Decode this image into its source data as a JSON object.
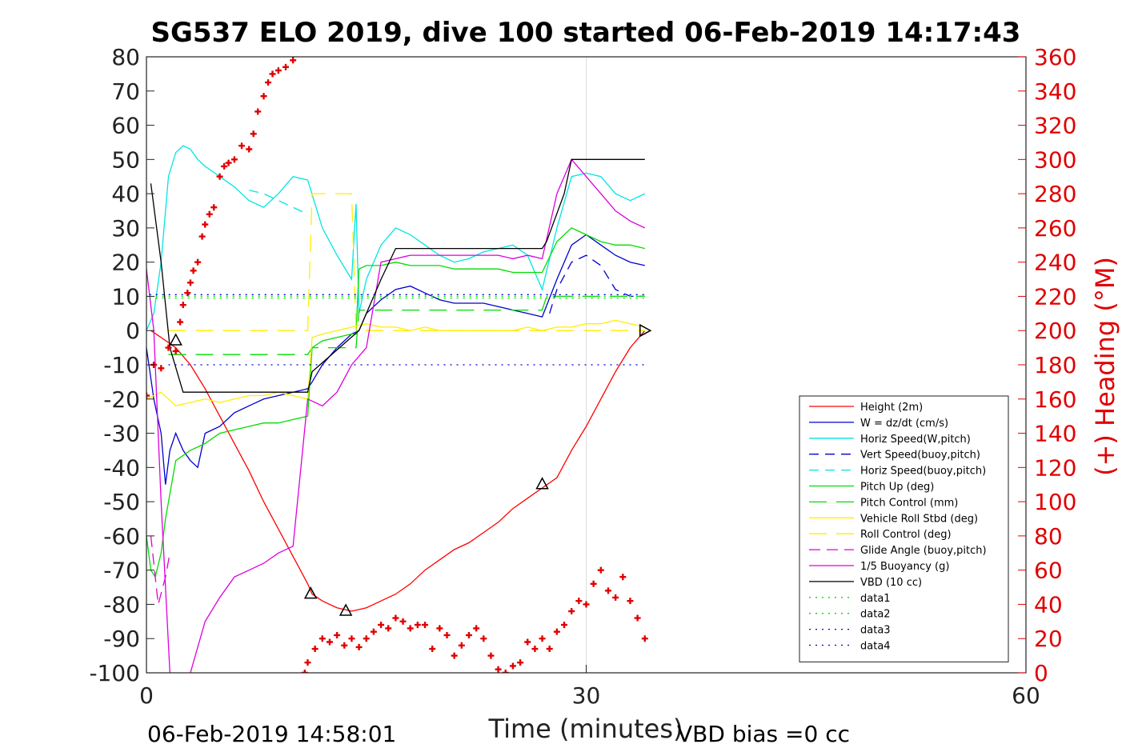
{
  "chart_data": {
    "type": "line",
    "title": "SG537 ELO 2019, dive 100 started 06-Feb-2019 14:17:43",
    "xlabel": "Time (minutes)",
    "ylabel": "",
    "ylabel_right": "(+) Heading (°M)",
    "xlim": [
      0,
      60
    ],
    "ylim": [
      -100,
      80
    ],
    "ylim_right": [
      0,
      360
    ],
    "x_ticks": [
      "0",
      "30",
      "60"
    ],
    "y_ticks": [
      "80",
      "70",
      "60",
      "50",
      "40",
      "30",
      "20",
      "10",
      "0",
      "-10",
      "-20",
      "-30",
      "-40",
      "-50",
      "-60",
      "-70",
      "-80",
      "-90",
      "-100"
    ],
    "y_ticks_right": [
      "360",
      "340",
      "320",
      "300",
      "280",
      "260",
      "240",
      "220",
      "200",
      "180",
      "160",
      "140",
      "120",
      "100",
      "80",
      "60",
      "40",
      "20",
      "0"
    ],
    "grid": "x only",
    "legend_position": "lower-right",
    "footer_left": "06-Feb-2019 14:58:01",
    "footer_right": "VBD bias =0 cc",
    "colors": {
      "red": "#ff0000",
      "blue": "#0000cc",
      "cyan": "#00e5e5",
      "green": "#00dd00",
      "yellow": "#ffee00",
      "magenta": "#dd00dd",
      "black": "#000000",
      "heading": "#e00000"
    },
    "series": [
      {
        "name": "Height (2m)",
        "color": "#ff0000",
        "dash": "",
        "x": [
          0.3,
          1,
          2,
          3,
          4,
          5,
          6,
          7,
          8,
          9,
          10,
          11,
          11.3,
          12,
          13,
          14,
          15,
          16,
          17,
          18,
          19,
          20,
          21,
          22,
          23,
          24,
          25,
          26,
          27,
          28,
          29,
          30,
          31,
          32,
          33,
          34
        ],
        "y": [
          0,
          -2,
          -5,
          -10,
          -17,
          -25,
          -33,
          -41,
          -50,
          -58,
          -66,
          -74,
          -77,
          -79,
          -81,
          -82,
          -81,
          -79,
          -77,
          -74,
          -70,
          -67,
          -64,
          -62,
          -59,
          -56,
          -52,
          -49,
          -46,
          -43,
          -35,
          -28,
          -20,
          -12,
          -5,
          0
        ]
      },
      {
        "name": "W = dz/dt (cm/s)",
        "color": "#0000cc",
        "dash": "",
        "x": [
          0,
          0.5,
          1,
          1.3,
          1.6,
          2,
          2.5,
          3,
          3.5,
          4,
          5,
          6,
          7,
          8,
          9,
          10,
          11,
          11.3,
          12,
          13,
          14,
          14.5,
          15,
          16,
          17,
          18,
          19,
          20,
          21,
          22,
          23,
          24,
          25,
          26,
          27,
          28,
          29,
          30,
          31,
          32,
          33,
          34
        ],
        "y": [
          -5,
          -20,
          -30,
          -45,
          -35,
          -30,
          -35,
          -38,
          -40,
          -30,
          -28,
          -24,
          -22,
          -20,
          -19,
          -18,
          -17,
          -15,
          -10,
          -5,
          -1,
          0,
          5,
          9,
          12,
          13,
          11,
          9,
          8,
          8,
          8,
          7,
          6,
          5,
          4,
          15,
          25,
          28,
          25,
          22,
          20,
          19
        ]
      },
      {
        "name": "Horiz Speed(W,pitch)",
        "color": "#00e5e5",
        "dash": "",
        "x": [
          0,
          0.5,
          1,
          1.5,
          2,
          2.5,
          3,
          3.5,
          4,
          5,
          6,
          7,
          8,
          9,
          10,
          11,
          12,
          13,
          14,
          14.3,
          14.5,
          15,
          16,
          17,
          18,
          19,
          20,
          21,
          22,
          23,
          24,
          25,
          26,
          27,
          28,
          29,
          30,
          31,
          32,
          33,
          34
        ],
        "y": [
          0,
          5,
          20,
          45,
          52,
          54,
          53,
          50,
          48,
          45,
          42,
          38,
          36,
          40,
          45,
          44,
          30,
          22,
          15,
          37,
          5,
          15,
          25,
          30,
          28,
          25,
          22,
          20,
          21,
          23,
          24,
          25,
          22,
          12,
          30,
          45,
          46,
          45,
          40,
          38,
          40
        ]
      },
      {
        "name": "Vert Speed(buoy,pitch)",
        "color": "#0000cc",
        "dash": "12,8",
        "x": [
          27.5,
          28,
          29,
          30,
          31,
          32,
          33,
          34
        ],
        "y": [
          5,
          12,
          20,
          22,
          19,
          12,
          10,
          10
        ]
      },
      {
        "name": "Horiz Speed(buoy,pitch)",
        "color": "#00e5e5",
        "dash": "12,8",
        "x": [
          7,
          8,
          9,
          10,
          11
        ],
        "y": [
          41,
          40,
          38,
          36,
          34
        ]
      },
      {
        "name": "Pitch Up (deg)",
        "color": "#00dd00",
        "dash": "",
        "x": [
          0,
          0.3,
          0.6,
          1,
          1.3,
          2,
          3,
          4,
          5,
          6,
          7,
          8,
          9,
          10,
          11,
          11.3,
          12,
          13,
          14,
          14.3,
          14.5,
          15,
          16,
          17,
          18,
          19,
          20,
          21,
          22,
          23,
          24,
          25,
          26,
          27,
          28,
          29,
          30,
          31,
          32,
          33,
          34
        ],
        "y": [
          -60,
          -70,
          -72,
          -65,
          -55,
          -38,
          -35,
          -33,
          -30,
          -29,
          -28,
          -27,
          -27,
          -26,
          -25,
          -5,
          -3,
          -2,
          -1,
          -1,
          18,
          19,
          19,
          20,
          19,
          19,
          19,
          18,
          18,
          18,
          18,
          17,
          17,
          17,
          26,
          30,
          28,
          26,
          25,
          25,
          24
        ]
      },
      {
        "name": "Pitch Control (mm)",
        "color": "#00dd00",
        "dash": "22,12",
        "x": [
          1.5,
          11,
          11.3,
          14.3,
          14.5,
          27,
          27.3,
          34
        ],
        "y": [
          -7,
          -7,
          -5,
          -5,
          6,
          6,
          10,
          10
        ]
      },
      {
        "name": "Vehicle Roll Stbd (deg)",
        "color": "#ffee00",
        "dash": "",
        "x": [
          0,
          1,
          2,
          3,
          4,
          5,
          6,
          7,
          8,
          9,
          10,
          11,
          11.3,
          12,
          13,
          14,
          15,
          16,
          17,
          18,
          19,
          20,
          21,
          22,
          23,
          24,
          25,
          26,
          27,
          28,
          29,
          30,
          31,
          32,
          33,
          34
        ],
        "y": [
          -20,
          -18,
          -22,
          -21,
          -20,
          -21,
          -20,
          -19,
          -19,
          -18,
          -19,
          -20,
          -2,
          -1,
          0,
          1,
          2,
          1,
          1,
          0,
          1,
          0,
          0,
          0,
          0,
          0,
          0,
          1,
          0,
          1,
          1,
          2,
          2,
          3,
          2,
          1
        ]
      },
      {
        "name": "Roll Control (deg)",
        "color": "#ffee00",
        "dash": "22,12",
        "x": [
          1.5,
          11,
          11.3,
          14,
          14.3,
          34
        ],
        "y": [
          0,
          0,
          40,
          40,
          0,
          0
        ]
      },
      {
        "name": "Glide Angle (buoy,pitch)",
        "color": "#dd00dd",
        "dash": "14,8",
        "x": [
          0.3,
          0.8,
          1.3,
          1.6
        ],
        "y": [
          -60,
          -80,
          -72,
          -65
        ]
      },
      {
        "name": "1/5 Buoyancy (g)",
        "color": "#dd00dd",
        "dash": "",
        "x": [
          0,
          0.5,
          1,
          1.6,
          2,
          2.3,
          3,
          4,
          5,
          6,
          7,
          8,
          9,
          10,
          11,
          12,
          13,
          14,
          15,
          16,
          17,
          18,
          19,
          20,
          21,
          22,
          23,
          24,
          25,
          26,
          27,
          28,
          29,
          30,
          31,
          32,
          33,
          34
        ],
        "y": [
          18,
          0,
          -50,
          -100,
          -110,
          -112,
          -100,
          -85,
          -78,
          -72,
          -70,
          -68,
          -65,
          -63,
          -20,
          -22,
          -18,
          -10,
          -5,
          20,
          21,
          22,
          22,
          22,
          22,
          22,
          22,
          22,
          21,
          22,
          21,
          40,
          50,
          45,
          40,
          35,
          32,
          30
        ]
      },
      {
        "name": "VBD (10 cc)",
        "color": "#000000",
        "dash": "",
        "x": [
          0.3,
          1,
          1.6,
          2.5,
          3,
          11,
          11.3,
          14.5,
          16,
          17,
          27,
          27.3,
          28.5,
          29,
          34
        ],
        "y": [
          43,
          20,
          -5,
          -18,
          -18,
          -18,
          -12,
          0,
          15,
          24,
          24,
          26,
          40,
          50,
          50
        ]
      },
      {
        "name": "data1",
        "color": "#00dd00",
        "dash": "2,6",
        "x": [
          0.2,
          34
        ],
        "y": [
          10,
          10
        ]
      },
      {
        "name": "data2",
        "color": "#00dd00",
        "dash": "2,6",
        "x": [
          0.2,
          34
        ],
        "y": [
          9.5,
          9.5
        ]
      },
      {
        "name": "data3",
        "color": "#0000cc",
        "dash": "2,6",
        "x": [
          0.2,
          34
        ],
        "y": [
          10.5,
          10.5
        ]
      },
      {
        "name": "data4",
        "color": "#0000cc",
        "dash": "2,6",
        "x": [
          1.5,
          34
        ],
        "y": [
          -10,
          -10
        ]
      }
    ],
    "heading": {
      "color": "#e00000",
      "x": [
        0,
        0.5,
        1,
        1.5,
        2,
        2.3,
        2.5,
        2.8,
        3,
        3.2,
        3.5,
        3.8,
        4,
        4.3,
        4.6,
        5,
        5.3,
        5.6,
        6,
        6.5,
        7,
        7.3,
        7.6,
        8,
        8.3,
        8.6,
        9,
        9.5,
        10,
        10.5,
        10.8,
        11,
        11.5,
        12,
        12.5,
        13,
        13.5,
        14,
        14.5,
        15,
        15.5,
        16,
        16.5,
        17,
        17.5,
        18,
        18.5,
        19,
        19.5,
        20,
        20.5,
        21,
        21.5,
        22,
        22.5,
        23,
        23.5,
        24,
        24.5,
        25,
        25.5,
        26,
        26.5,
        27,
        27.5,
        28,
        28.5,
        29,
        29.5,
        30,
        30.5,
        31,
        31.5,
        32,
        32.5,
        33,
        33.5,
        34
      ],
      "y": [
        162,
        180,
        178,
        190,
        188,
        205,
        215,
        222,
        228,
        235,
        240,
        255,
        262,
        268,
        272,
        290,
        296,
        298,
        300,
        308,
        306,
        315,
        328,
        337,
        345,
        350,
        352,
        354,
        358,
        362,
        0,
        6,
        14,
        20,
        18,
        22,
        16,
        20,
        15,
        20,
        24,
        28,
        26,
        32,
        30,
        26,
        28,
        28,
        14,
        26,
        22,
        10,
        16,
        22,
        26,
        20,
        10,
        2,
        0,
        4,
        6,
        18,
        14,
        20,
        14,
        24,
        28,
        36,
        42,
        40,
        52,
        60,
        48,
        44,
        56,
        42,
        32,
        20
      ]
    },
    "annotations": {
      "triangles": [
        [
          2,
          -3
        ],
        [
          11.2,
          -77
        ],
        [
          13.6,
          -82
        ],
        [
          27,
          -45
        ]
      ],
      "arrow_end": [
        34,
        0
      ]
    }
  }
}
